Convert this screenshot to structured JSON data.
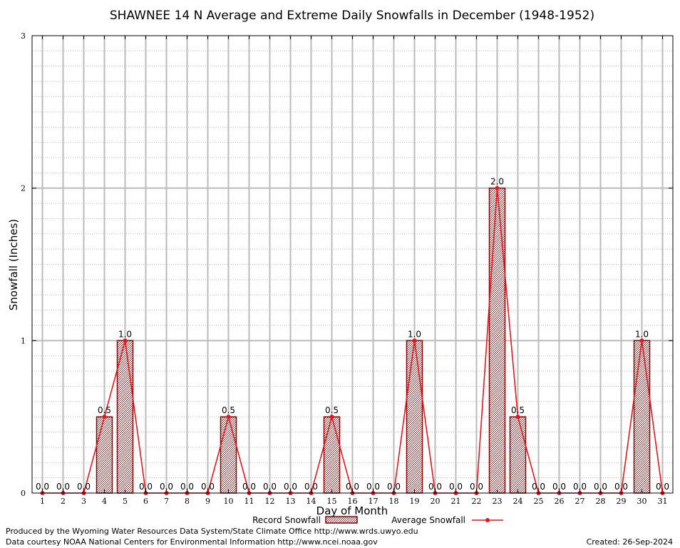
{
  "chart_data": {
    "type": "bar",
    "title": "SHAWNEE 14 N Average and Extreme Daily Snowfalls in December (1948-1952)",
    "xlabel": "Day of Month",
    "ylabel": "Snowfall (Inches)",
    "ylim": [
      0,
      3
    ],
    "yticks": [
      "0",
      "1",
      "2",
      "3"
    ],
    "categories": [
      "1",
      "2",
      "3",
      "4",
      "5",
      "6",
      "7",
      "8",
      "9",
      "10",
      "11",
      "12",
      "13",
      "14",
      "15",
      "16",
      "17",
      "18",
      "19",
      "20",
      "21",
      "22",
      "23",
      "24",
      "25",
      "26",
      "27",
      "28",
      "29",
      "30",
      "31"
    ],
    "series": [
      {
        "name": "Record Snowfall",
        "kind": "bar",
        "values": [
          0,
          0,
          0,
          0.5,
          1.0,
          0,
          0,
          0,
          0,
          0.5,
          0,
          0,
          0,
          0,
          0.5,
          0,
          0,
          0,
          1.0,
          0,
          0,
          0,
          2.0,
          0.5,
          0,
          0,
          0,
          0,
          0,
          1.0,
          0
        ]
      },
      {
        "name": "Average Snowfall",
        "kind": "line",
        "values": [
          0,
          0,
          0,
          0.5,
          1.0,
          0,
          0,
          0,
          0,
          0.5,
          0,
          0,
          0,
          0,
          0.5,
          0,
          0,
          0,
          1.0,
          0,
          0,
          0,
          2.0,
          0.5,
          0,
          0,
          0,
          0,
          0,
          1.0,
          0
        ]
      }
    ],
    "data_labels": [
      "0.0",
      "0.0",
      "0.0",
      "0.5",
      "1.0",
      "0.0",
      "0.0",
      "0.0",
      "0.0",
      "0.5",
      "0.0",
      "0.0",
      "0.0",
      "0.0",
      "0.5",
      "0.0",
      "0.0",
      "0.0",
      "1.0",
      "0.0",
      "0.0",
      "0.0",
      "2.0",
      "0.5",
      "0.0",
      "0.0",
      "0.0",
      "0.0",
      "0.0",
      "1.0",
      "0.0"
    ],
    "grid": true,
    "legend_position": "bottom-center",
    "colors": {
      "bar_fill": "#c9a6a6",
      "bar_edge": "#8b0000",
      "line": "#e8141e",
      "grid": "#bbbbbb"
    }
  },
  "footer": {
    "produced_by": "Produced by the Wyoming Water Resources Data System/State Climate Office http://www.wrds.uwyo.edu",
    "courtesy": "Data courtesy NOAA National Centers for Environmental Information http://www.ncei.noaa.gov",
    "created": "Created:  26-Sep-2024"
  }
}
